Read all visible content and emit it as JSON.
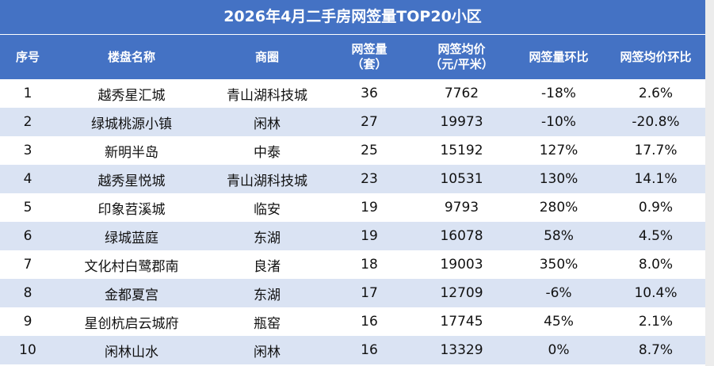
{
  "table": {
    "title": "2026年4月二手房网签量TOP20小区",
    "headers": [
      "序号",
      "楼盘名称",
      "商圈",
      [
        "网签量",
        "（套）"
      ],
      [
        "网签均价",
        "（元/平米）"
      ],
      "网签量环比",
      "网签均价环比"
    ],
    "rows": [
      [
        1,
        "越秀星汇城",
        "青山湖科技城",
        36,
        7762,
        "-18%",
        "2.6%"
      ],
      [
        2,
        "绿城桃源小镇",
        "闲林",
        27,
        19973,
        "-10%",
        "-20.8%"
      ],
      [
        3,
        "新明半岛",
        "中泰",
        25,
        15192,
        "127%",
        "17.7%"
      ],
      [
        4,
        "越秀星悦城",
        "青山湖科技城",
        23,
        10531,
        "130%",
        "14.1%"
      ],
      [
        5,
        "印象苕溪城",
        "临安",
        19,
        9793,
        "280%",
        "0.9%"
      ],
      [
        6,
        "绿城蓝庭",
        "东湖",
        19,
        16078,
        "58%",
        "4.5%"
      ],
      [
        7,
        "文化村白鹭郡南",
        "良渚",
        18,
        19003,
        "350%",
        "8.0%"
      ],
      [
        8,
        "金都夏宫",
        "东湖",
        17,
        12709,
        "-6%",
        "10.4%"
      ],
      [
        9,
        "星创杭启云城府",
        "瓶窑",
        16,
        17745,
        "45%",
        "2.1%"
      ],
      [
        10,
        "闲林山水",
        "闲林",
        16,
        13329,
        "0%",
        "8.7%"
      ]
    ]
  }
}
